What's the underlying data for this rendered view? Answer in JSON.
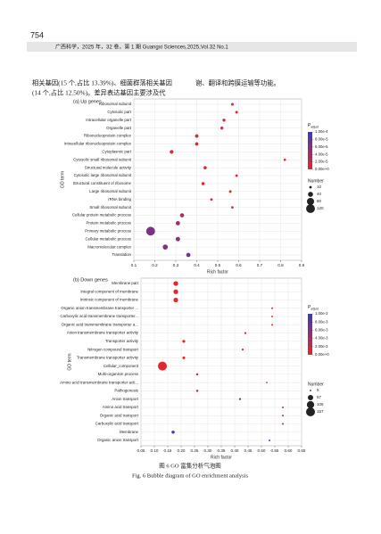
{
  "header": {
    "page_number": "754",
    "journal": "广西科学，2025 年，32 卷，第 1 期 Guangxi Sciences,2025,Vol.32 No.1"
  },
  "body": {
    "left_lines": [
      "相关基因(15 个,占比 13.39%)、细菌群落相关基因",
      "(14 个,占比 12.50%)。差异表达基因主要涉及代"
    ],
    "right_lines": [
      "谢、翻译和跨膜运输等功能。"
    ]
  },
  "caption": {
    "zh": "图 6   GO 富集分析气泡图",
    "en": "Fig. 6   Bubble diagram of GO enrichment analysis"
  },
  "chart_data": [
    {
      "type": "bubble",
      "title": "(a) Up genes",
      "xlabel": "Rich factor",
      "ylabel": "GO term",
      "categories": [
        "Ribosomal subunit",
        "Cytosolic part",
        "Intracellular organelle part",
        "Organelle part",
        "Ribonucleoprotein complex",
        "Intracellular ribonucleoprotein complex",
        "Cytoplasmic part",
        "Cytosolic small ribosomal subunit",
        "Structural molecule activity",
        "Cytosolic large ribosomal subunit",
        "Structural constituent of ribosome",
        "Large ribosomal subunit",
        "rRNA binding",
        "Small ribosomal subunit",
        "Cellular protein metabolic process",
        "Protein metabolic process",
        "Primary metabolic process",
        "Cellular metabolic process",
        "Macromolecular complex",
        "Translation"
      ],
      "values": [
        0.57,
        0.59,
        0.53,
        0.52,
        0.4,
        0.4,
        0.28,
        0.82,
        0.44,
        0.59,
        0.43,
        0.56,
        0.47,
        0.57,
        0.33,
        0.31,
        0.18,
        0.31,
        0.25,
        0.36
      ],
      "sizes": [
        12,
        11,
        14,
        14,
        18,
        18,
        22,
        9,
        16,
        10,
        15,
        11,
        10,
        9,
        26,
        28,
        120,
        30,
        40,
        28
      ],
      "padj": [
        2e-06,
        2e-06,
        4e-06,
        4e-06,
        5e-06,
        5e-06,
        6e-06,
        3e-06,
        8e-06,
        3e-06,
        8e-06,
        3e-06,
        6e-06,
        4e-06,
        4e-05,
        4.5e-05,
        6.2e-05,
        5e-05,
        6e-05,
        7e-05
      ],
      "xlim": [
        0.1,
        0.9
      ],
      "xticks": [
        0.1,
        0.2,
        0.3,
        0.4,
        0.5,
        0.6,
        0.7,
        0.8,
        0.9
      ],
      "grid": true,
      "color_title": "P",
      "color_title_sub": "adjust",
      "clim": [
        0,
        0.0001
      ],
      "cticks": [
        {
          "value": 0.0001,
          "label": "1.00e-4"
        },
        {
          "value": 8e-05,
          "label": "8.00e-5"
        },
        {
          "value": 6e-05,
          "label": "6.00e-5"
        },
        {
          "value": 4e-05,
          "label": "4.00e-5"
        },
        {
          "value": 2e-05,
          "label": "2.00e-5"
        },
        {
          "value": 0,
          "label": "0.00e+0"
        }
      ],
      "color_low": "#e8262b",
      "color_high": "#3a3ab8",
      "size_title": "Number",
      "size_ticks": [
        10,
        40,
        80,
        120
      ]
    },
    {
      "type": "bubble",
      "title": "(b) Down genes",
      "xlabel": "Rich factor",
      "ylabel": "GO term",
      "categories": [
        "Membrane part",
        "Integral component of membrane",
        "Intrinsic component of membrane",
        "Organic anion transmembrane transporter ...",
        "Carboxylic acid transmembrane transporter...",
        "Organic acid transmembrane transporter a...",
        "Anion transmembrane transporter activity",
        "Transporter activity",
        "Nitrogen compound transport",
        "Transmembrane transporter activity",
        "Cellular_component",
        "Multi-organism process",
        "Amino acid transmembrane transporter acti...",
        "Pathogenesis",
        "Anion transport",
        "Amino acid transport",
        "Organic acid transport",
        "Carboxylic acid transport",
        "Membrane",
        "Organic anion transport"
      ],
      "values": [
        0.18,
        0.18,
        0.18,
        0.54,
        0.54,
        0.54,
        0.44,
        0.21,
        0.43,
        0.21,
        0.13,
        0.26,
        0.52,
        0.26,
        0.42,
        0.58,
        0.58,
        0.58,
        0.17,
        0.53
      ],
      "sizes": [
        45,
        42,
        42,
        6,
        6,
        6,
        8,
        16,
        8,
        15,
        157,
        10,
        5,
        10,
        8,
        6,
        6,
        6,
        20,
        6
      ],
      "padj": [
        0.0002,
        0.0002,
        0.0002,
        0.0002,
        0.0002,
        0.0002,
        0.0003,
        0.0004,
        0.0005,
        0.0004,
        0.0003,
        0.0008,
        0.001,
        0.0008,
        0.007,
        0.005,
        0.005,
        0.005,
        0.008,
        0.007
      ],
      "xlim": [
        0.05,
        0.65
      ],
      "xticks": [
        {
          "value": 0.05,
          "label": "0.05"
        },
        {
          "value": 0.1,
          "label": "0.10"
        },
        {
          "value": 0.15,
          "label": "0.15"
        },
        {
          "value": 0.2,
          "label": "0.20"
        },
        {
          "value": 0.25,
          "label": "0.25"
        },
        {
          "value": 0.3,
          "label": "0.30"
        },
        {
          "value": 0.35,
          "label": "0.35"
        },
        {
          "value": 0.4,
          "label": "0.40"
        },
        {
          "value": 0.45,
          "label": "0.45"
        },
        {
          "value": 0.5,
          "label": "0.50"
        },
        {
          "value": 0.55,
          "label": "0.55"
        },
        {
          "value": 0.6,
          "label": "0.60"
        },
        {
          "value": 0.65,
          "label": "0.65"
        }
      ],
      "grid": true,
      "color_title": "P",
      "color_title_sub": "adjust",
      "clim": [
        0,
        0.01
      ],
      "cticks": [
        {
          "value": 0.01,
          "label": "1.00e-2"
        },
        {
          "value": 0.008,
          "label": "8.00e-3"
        },
        {
          "value": 0.006,
          "label": "6.00e-3"
        },
        {
          "value": 0.004,
          "label": "4.00e-3"
        },
        {
          "value": 0.002,
          "label": "2.00e-3"
        },
        {
          "value": 0,
          "label": "0.00e+0"
        }
      ],
      "color_low": "#e8262b",
      "color_high": "#3a3ab8",
      "size_title": "Number",
      "size_ticks": [
        5,
        57,
        106,
        157
      ]
    }
  ]
}
